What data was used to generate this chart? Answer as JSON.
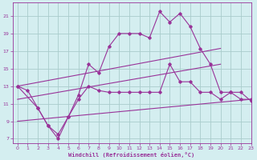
{
  "background_color": "#d4eef0",
  "grid_color": "#aacccc",
  "line_color": "#993399",
  "xlabel": "Windchill (Refroidissement éolien,°C)",
  "xlim": [
    -0.5,
    23
  ],
  "ylim": [
    6.5,
    22.5
  ],
  "yticks": [
    7,
    9,
    11,
    13,
    15,
    17,
    19,
    21
  ],
  "xticks": [
    0,
    1,
    2,
    3,
    4,
    5,
    6,
    7,
    8,
    9,
    10,
    11,
    12,
    13,
    14,
    15,
    16,
    17,
    18,
    19,
    20,
    21,
    22,
    23
  ],
  "series1_x": [
    0,
    1,
    2,
    3,
    4,
    5,
    6,
    7,
    8,
    9,
    10,
    11,
    12,
    13,
    14,
    15,
    16,
    17,
    18,
    19,
    20,
    21,
    22,
    23
  ],
  "series1_y": [
    13,
    12.5,
    10.5,
    8.5,
    7.5,
    9.5,
    12.0,
    15.5,
    14.5,
    17.5,
    19.0,
    19.0,
    19.0,
    18.5,
    21.5,
    20.3,
    21.3,
    19.8,
    17.3,
    15.5,
    12.3,
    12.3,
    11.5,
    11.5
  ],
  "series2_x": [
    0,
    2,
    3,
    4,
    5,
    6,
    7,
    8,
    9,
    10,
    11,
    12,
    13,
    14,
    15,
    16,
    17,
    18,
    19,
    20,
    21,
    22,
    23
  ],
  "series2_y": [
    13,
    10.5,
    8.5,
    7.0,
    9.5,
    11.5,
    13.0,
    12.5,
    12.3,
    12.3,
    12.3,
    12.3,
    12.3,
    12.3,
    15.5,
    13.5,
    13.5,
    12.3,
    12.3,
    11.5,
    12.3,
    12.3,
    11.3
  ],
  "series3_x": [
    0,
    20
  ],
  "series3_y": [
    13,
    17.3
  ],
  "series4_x": [
    0,
    20
  ],
  "series4_y": [
    11.5,
    15.5
  ],
  "series5_x": [
    0,
    23
  ],
  "series5_y": [
    9.0,
    11.5
  ]
}
